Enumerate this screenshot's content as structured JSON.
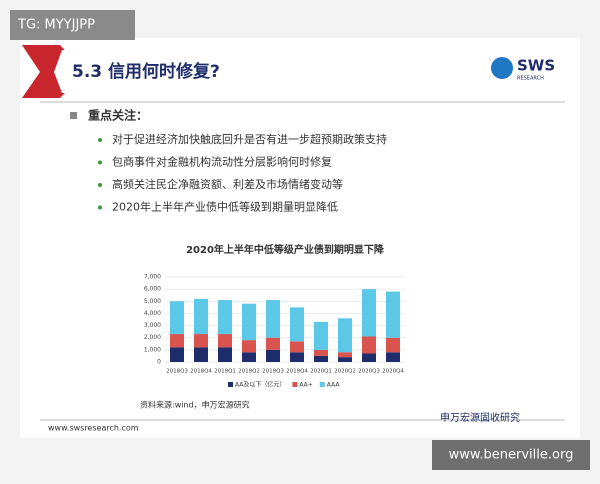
{
  "watermark_top": "TG: MYYJJPP",
  "slide": {
    "title": "5.3 信用何时修复?",
    "logo": "SWS",
    "logo_sub": "RESEARCH",
    "heading": "重点关注：",
    "bullets": [
      "对于促进经济加快触底回升是否有进一步超预期政策支持",
      "包商事件对金融机构流动性分层影响何时修复",
      "高频关注民企净融资额、利差及市场情绪变动等",
      "2020年上半年产业债中低等级到期量明显降低"
    ],
    "source": "资料来源:wind，申万宏源研究",
    "footer": "www.swsresearch.com",
    "brand": "申万宏源固收研究"
  },
  "chart_data": {
    "type": "bar",
    "stacked": true,
    "title": "2020年上半年中低等级产业债到期明显下降",
    "categories": [
      "2018Q3",
      "2018Q4",
      "2019Q1",
      "2019Q2",
      "2019Q3",
      "2019Q4",
      "2020Q1",
      "2020Q2",
      "2020Q3",
      "2020Q4"
    ],
    "series": [
      {
        "name": "AA及以下（亿元）",
        "color": "#1f2d6b",
        "values": [
          1200,
          1200,
          1200,
          800,
          1000,
          800,
          500,
          400,
          700,
          800
        ]
      },
      {
        "name": "AA+",
        "color": "#d9534f",
        "values": [
          1100,
          1100,
          1100,
          1000,
          1000,
          900,
          500,
          400,
          1400,
          1200
        ]
      },
      {
        "name": "AAA",
        "color": "#5bc8e8",
        "values": [
          2700,
          2900,
          2800,
          3000,
          3100,
          2800,
          2300,
          2800,
          3900,
          3800
        ]
      }
    ],
    "ylim": [
      0,
      7000
    ],
    "yticks": [
      0,
      {
        "value": 1000,
        "label": "1,000"
      },
      {
        "value": 2000,
        "label": "2,000"
      },
      {
        "value": 3000,
        "label": "3,000"
      },
      {
        "value": 4000,
        "label": "4,000"
      },
      {
        "value": 5000,
        "label": "5,000"
      },
      {
        "value": 6000,
        "label": "6,000"
      },
      {
        "value": 7000,
        "label": "7,000"
      }
    ],
    "legend": "bottom"
  },
  "watermark_bottom": "www.benerville.org"
}
